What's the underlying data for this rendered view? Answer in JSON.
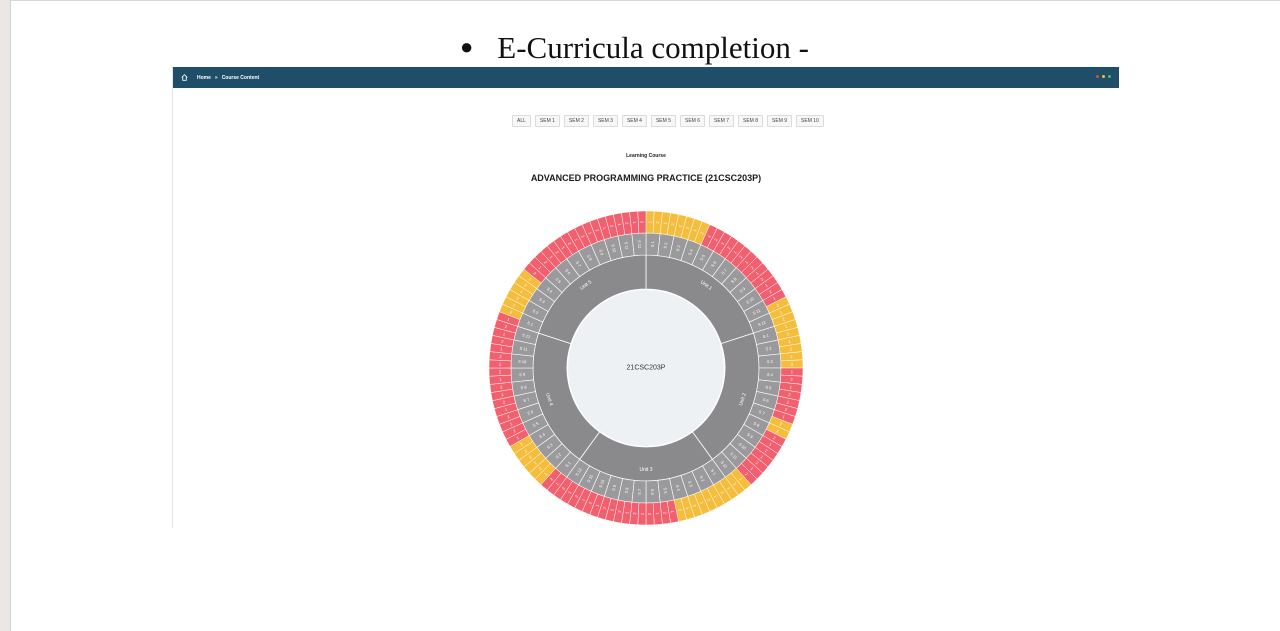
{
  "document": {
    "bullet_symbol": "●",
    "heading": "E-Curricula completion -"
  },
  "topbar": {
    "home_icon": "home-icon",
    "breadcrumb": {
      "home": "Home",
      "separator": "»",
      "current": "Course Content"
    },
    "window_dots": [
      "#e04a4a",
      "#f0c040",
      "#3fbf5f"
    ]
  },
  "semester_tabs": [
    "ALL",
    "SEM 1",
    "SEM 2",
    "SEM 3",
    "SEM 4",
    "SEM 5",
    "SEM 6",
    "SEM 7",
    "SEM 8",
    "SEM 9",
    "SEM 10"
  ],
  "learning_label": "Learning Course",
  "course_title": "ADVANCED PROGRAMMING PRACTICE (21CSC203P)",
  "sunburst": {
    "center_label": "21CSC203P",
    "colors": {
      "center": "#eef1f4",
      "unit_ring": "#8a8a8c",
      "session_ring": "#9a9a9c",
      "completed": "#f5bd3c",
      "pending": "#f26070",
      "separator": "#ffffff"
    },
    "units": [
      {
        "label": "Unit 1",
        "sessions": 12,
        "outer_status": [
          "c",
          "c",
          "c",
          "c",
          "c",
          "c",
          "c",
          "c",
          "p",
          "p",
          "p",
          "p",
          "p",
          "p",
          "p",
          "p",
          "p",
          "p",
          "p",
          "p",
          "p",
          "c",
          "c",
          "c"
        ]
      },
      {
        "label": "Unit 2",
        "sessions": 12,
        "outer_status": [
          "c",
          "c",
          "c",
          "c",
          "c",
          "c",
          "p",
          "p",
          "p",
          "p",
          "p",
          "p",
          "p",
          "c",
          "c",
          "p",
          "p",
          "p",
          "p",
          "p",
          "p",
          "p",
          "c",
          "c"
        ]
      },
      {
        "label": "Unit 3",
        "sessions": 12,
        "outer_status": [
          "c",
          "c",
          "c",
          "c",
          "c",
          "c",
          "c",
          "c",
          "p",
          "p",
          "p",
          "p",
          "p",
          "p",
          "p",
          "p",
          "p",
          "p",
          "p",
          "p",
          "p",
          "p",
          "p",
          "p"
        ]
      },
      {
        "label": "Unit 4",
        "sessions": 12,
        "outer_status": [
          "p",
          "p",
          "c",
          "c",
          "c",
          "c",
          "c",
          "c",
          "p",
          "p",
          "p",
          "p",
          "p",
          "p",
          "p",
          "p",
          "p",
          "p",
          "p",
          "p",
          "p",
          "p",
          "p",
          "p"
        ]
      },
      {
        "label": "Unit 5",
        "sessions": 12,
        "outer_status": [
          "p",
          "c",
          "c",
          "c",
          "c",
          "c",
          "c",
          "p",
          "p",
          "p",
          "p",
          "p",
          "p",
          "p",
          "p",
          "p",
          "p",
          "p",
          "p",
          "p",
          "p",
          "p",
          "p",
          "p"
        ]
      }
    ],
    "outer_labels": [
      "1",
      "2"
    ]
  }
}
